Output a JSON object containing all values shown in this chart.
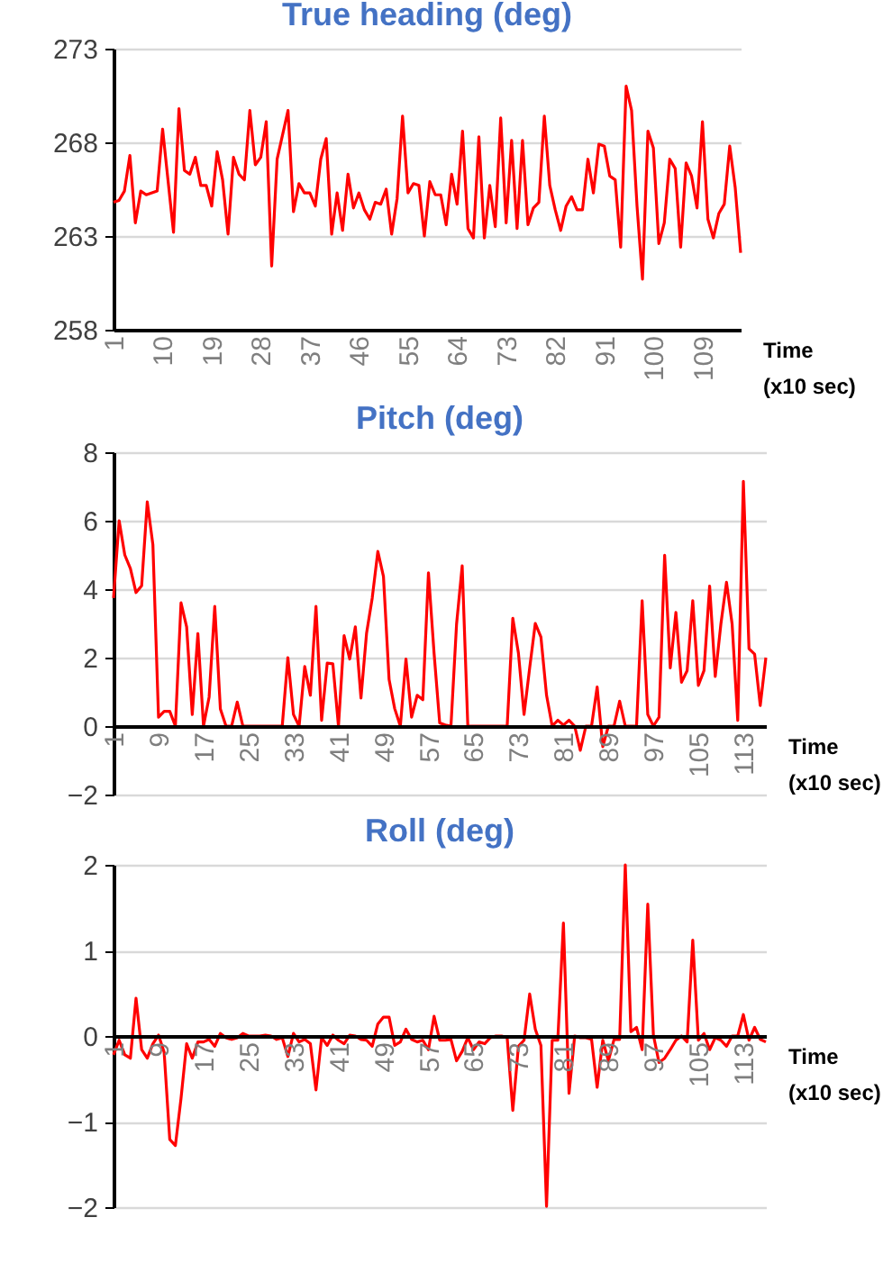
{
  "chart_data": [
    {
      "type": "line",
      "title": "True heading (deg)",
      "xlabel": "Time (x10 sec)",
      "xlim": [
        1,
        116
      ],
      "xticks": [
        1,
        10,
        19,
        28,
        37,
        46,
        55,
        64,
        73,
        82,
        91,
        100,
        109
      ],
      "ylim": [
        258,
        273
      ],
      "yticks": [
        258,
        263,
        268,
        273
      ],
      "grid": "y",
      "x": [
        1,
        2,
        3,
        4,
        5,
        6,
        7,
        9,
        10,
        12,
        13,
        14,
        15,
        16,
        17,
        18,
        19,
        20,
        21,
        22,
        23,
        24,
        25,
        26,
        27,
        28,
        29,
        30,
        31,
        33,
        34,
        35,
        36,
        37,
        38,
        39,
        40,
        41,
        42,
        43,
        44,
        45,
        46,
        47,
        48,
        49,
        50,
        51,
        52,
        53,
        54,
        55,
        56,
        57,
        58,
        59,
        60,
        61,
        62,
        63,
        64,
        65,
        66,
        67,
        68,
        69,
        70,
        71,
        72,
        73,
        74,
        75,
        76,
        77,
        78,
        79,
        80,
        81,
        82,
        83,
        84,
        85,
        86,
        87,
        88,
        89,
        90,
        91,
        92,
        93,
        94,
        95,
        96,
        97,
        98,
        99,
        100,
        101,
        102,
        103,
        104,
        105,
        106,
        107,
        108,
        109,
        110,
        111,
        112,
        113,
        114,
        115,
        116
      ],
      "series": [
        {
          "color": "#ff0000",
          "values": [
            264.8,
            264.9,
            265.4,
            267.3,
            263.7,
            265.4,
            265.2,
            265.4,
            268.7,
            263.2,
            269.8,
            266.5,
            266.3,
            267.2,
            265.7,
            265.7,
            264.6,
            267.5,
            266,
            263.1,
            267.2,
            266.3,
            266,
            269.7,
            266.8,
            267.2,
            269.1,
            261.4,
            267.1,
            269.7,
            264.3,
            265.8,
            265.3,
            265.3,
            264.6,
            267.1,
            268.2,
            263.1,
            265.3,
            263.3,
            266.3,
            264.5,
            265.3,
            264.4,
            263.9,
            264.8,
            264.7,
            265.5,
            263.1,
            265,
            269.4,
            265.3,
            265.8,
            265.7,
            263,
            265.9,
            265.2,
            265.2,
            263.6,
            266.3,
            264.7,
            268.6,
            263.4,
            262.9,
            268.3,
            262.9,
            265.7,
            263.5,
            269.3,
            263.7,
            268.1,
            263.4,
            268.1,
            263.6,
            264.5,
            264.8,
            269.4,
            265.7,
            264.4,
            263.3,
            264.6,
            265.1,
            264.4,
            264.4,
            267.1,
            265.3,
            267.9,
            267.8,
            266.2,
            266,
            262.4,
            271,
            269.7,
            264.6,
            260.7,
            268.6,
            267.7,
            262.6,
            263.7,
            267.1,
            266.6,
            262.4,
            266.9,
            266.2,
            264.5,
            269.1,
            263.9,
            262.9,
            264.2,
            264.7,
            267.8,
            265.6,
            262.1
          ]
        }
      ]
    },
    {
      "type": "line",
      "title": "Pitch (deg)",
      "xlabel": "Time (x10 sec)",
      "xlim": [
        1,
        117
      ],
      "xticks": [
        1,
        9,
        17,
        25,
        33,
        41,
        49,
        57,
        65,
        73,
        81,
        89,
        97,
        105,
        113
      ],
      "ylim": [
        -2,
        8
      ],
      "yticks": [
        -2,
        0,
        2,
        4,
        6,
        8
      ],
      "grid": "y",
      "x": [
        1,
        2,
        3,
        4,
        5,
        6,
        7,
        8,
        9,
        10,
        11,
        12,
        13,
        14,
        15,
        16,
        17,
        18,
        19,
        20,
        21,
        22,
        23,
        24,
        31,
        32,
        33,
        34,
        35,
        36,
        37,
        38,
        39,
        40,
        41,
        42,
        43,
        44,
        45,
        46,
        47,
        48,
        49,
        50,
        51,
        52,
        53,
        54,
        55,
        56,
        57,
        58,
        59,
        60,
        61,
        62,
        63,
        64,
        71,
        72,
        73,
        74,
        75,
        76,
        77,
        78,
        79,
        80,
        81,
        82,
        83,
        84,
        85,
        86,
        87,
        88,
        89,
        90,
        91,
        92,
        93,
        94,
        95,
        96,
        97,
        98,
        99,
        100,
        101,
        102,
        103,
        104,
        105,
        106,
        107,
        108,
        109,
        110,
        111,
        112,
        113,
        114,
        115,
        116,
        117
      ],
      "series": [
        {
          "color": "#ff0000",
          "values": [
            3.74,
            6.0,
            5.0,
            4.6,
            3.9,
            4.1,
            6.55,
            5.3,
            0.26,
            0.43,
            0.43,
            0,
            3.6,
            2.9,
            0.34,
            2.7,
            0,
            0.85,
            3.5,
            0.5,
            0,
            0,
            0.7,
            0,
            0,
            2.0,
            0.34,
            0,
            1.74,
            0.9,
            3.5,
            0.17,
            1.84,
            1.82,
            0,
            2.64,
            1.96,
            2.9,
            0.82,
            2.72,
            3.74,
            5.1,
            4.37,
            1.36,
            0.51,
            0,
            1.96,
            0.26,
            0.9,
            0.77,
            4.48,
            2.13,
            0.09,
            0.03,
            0,
            2.98,
            4.68,
            0,
            0,
            3.15,
            2.13,
            0.34,
            1.7,
            3.0,
            2.6,
            0.9,
            0,
            0.17,
            0.03,
            0.17,
            0,
            -0.71,
            0,
            0,
            1.14,
            -0.6,
            0,
            0,
            0.73,
            0,
            0,
            0,
            3.66,
            0.34,
            0,
            0.26,
            4.99,
            1.7,
            3.32,
            1.28,
            1.62,
            3.66,
            1.19,
            1.62,
            4.09,
            1.45,
            2.98,
            4.2,
            2.98,
            0.17,
            7.15,
            2.26,
            2.1,
            0.6,
            2.0
          ]
        }
      ]
    },
    {
      "type": "line",
      "title": "Roll (deg)",
      "xlabel": "Time (x10 sec)",
      "xlim": [
        1,
        117
      ],
      "xticks": [
        1,
        9,
        17,
        25,
        33,
        41,
        49,
        57,
        65,
        73,
        81,
        89,
        97,
        105,
        113
      ],
      "ylim": [
        -2,
        2
      ],
      "yticks": [
        -2,
        -1,
        0,
        1,
        2
      ],
      "grid": "y",
      "x": [
        1,
        2,
        3,
        4,
        5,
        6,
        7,
        8,
        9,
        10,
        11,
        12,
        13,
        14,
        15,
        16,
        17,
        18,
        19,
        20,
        21,
        22,
        23,
        24,
        25,
        26,
        27,
        28,
        29,
        30,
        31,
        32,
        33,
        34,
        35,
        36,
        37,
        38,
        39,
        40,
        41,
        42,
        43,
        44,
        45,
        46,
        47,
        48,
        49,
        50,
        51,
        52,
        53,
        54,
        55,
        56,
        57,
        58,
        59,
        60,
        61,
        62,
        63,
        64,
        65,
        66,
        67,
        68,
        69,
        70,
        71,
        72,
        73,
        74,
        75,
        76,
        77,
        78,
        79,
        80,
        81,
        82,
        83,
        84,
        85,
        86,
        87,
        88,
        89,
        90,
        91,
        92,
        93,
        94,
        95,
        96,
        97,
        98,
        99,
        100,
        101,
        102,
        103,
        104,
        105,
        106,
        107,
        108,
        109,
        110,
        111,
        112,
        113,
        114,
        115,
        116,
        117
      ],
      "series": [
        {
          "color": "#ff0000",
          "values": [
            -0.22,
            -0.05,
            -0.22,
            -0.26,
            0.44,
            -0.16,
            -0.26,
            -0.09,
            0.01,
            -0.19,
            -1.21,
            -1.28,
            -0.73,
            -0.09,
            -0.26,
            -0.07,
            -0.07,
            -0.04,
            -0.12,
            0.03,
            -0.02,
            -0.04,
            -0.02,
            0.03,
            0,
            0,
            0,
            0.01,
            0,
            -0.04,
            -0.02,
            -0.24,
            0.03,
            -0.07,
            -0.04,
            -0.09,
            -0.63,
            -0.02,
            -0.11,
            0.01,
            -0.05,
            -0.09,
            0.01,
            0,
            -0.04,
            -0.05,
            -0.12,
            0.14,
            0.22,
            0.22,
            -0.11,
            -0.07,
            0.08,
            -0.04,
            -0.07,
            -0.05,
            -0.16,
            0.23,
            -0.05,
            -0.05,
            -0.04,
            -0.29,
            -0.18,
            -0.02,
            -0.16,
            -0.07,
            -0.09,
            -0.02,
            0,
            0,
            -0.02,
            -0.87,
            -0.12,
            -0.05,
            0.49,
            0.08,
            -0.11,
            -1.99,
            -0.05,
            -0.05,
            1.32,
            -0.67,
            0,
            -0.02,
            -0.02,
            -0.04,
            -0.6,
            -0.05,
            -0.29,
            -0.04,
            -0.04,
            2.0,
            0.05,
            0.1,
            -0.16,
            1.54,
            0.01,
            -0.31,
            -0.26,
            -0.16,
            -0.05,
            0,
            -0.07,
            1.12,
            -0.05,
            0.03,
            -0.16,
            -0.02,
            -0.05,
            -0.12,
            0,
            0,
            0.25,
            -0.05,
            0.1,
            -0.04,
            -0.07
          ]
        }
      ]
    }
  ]
}
